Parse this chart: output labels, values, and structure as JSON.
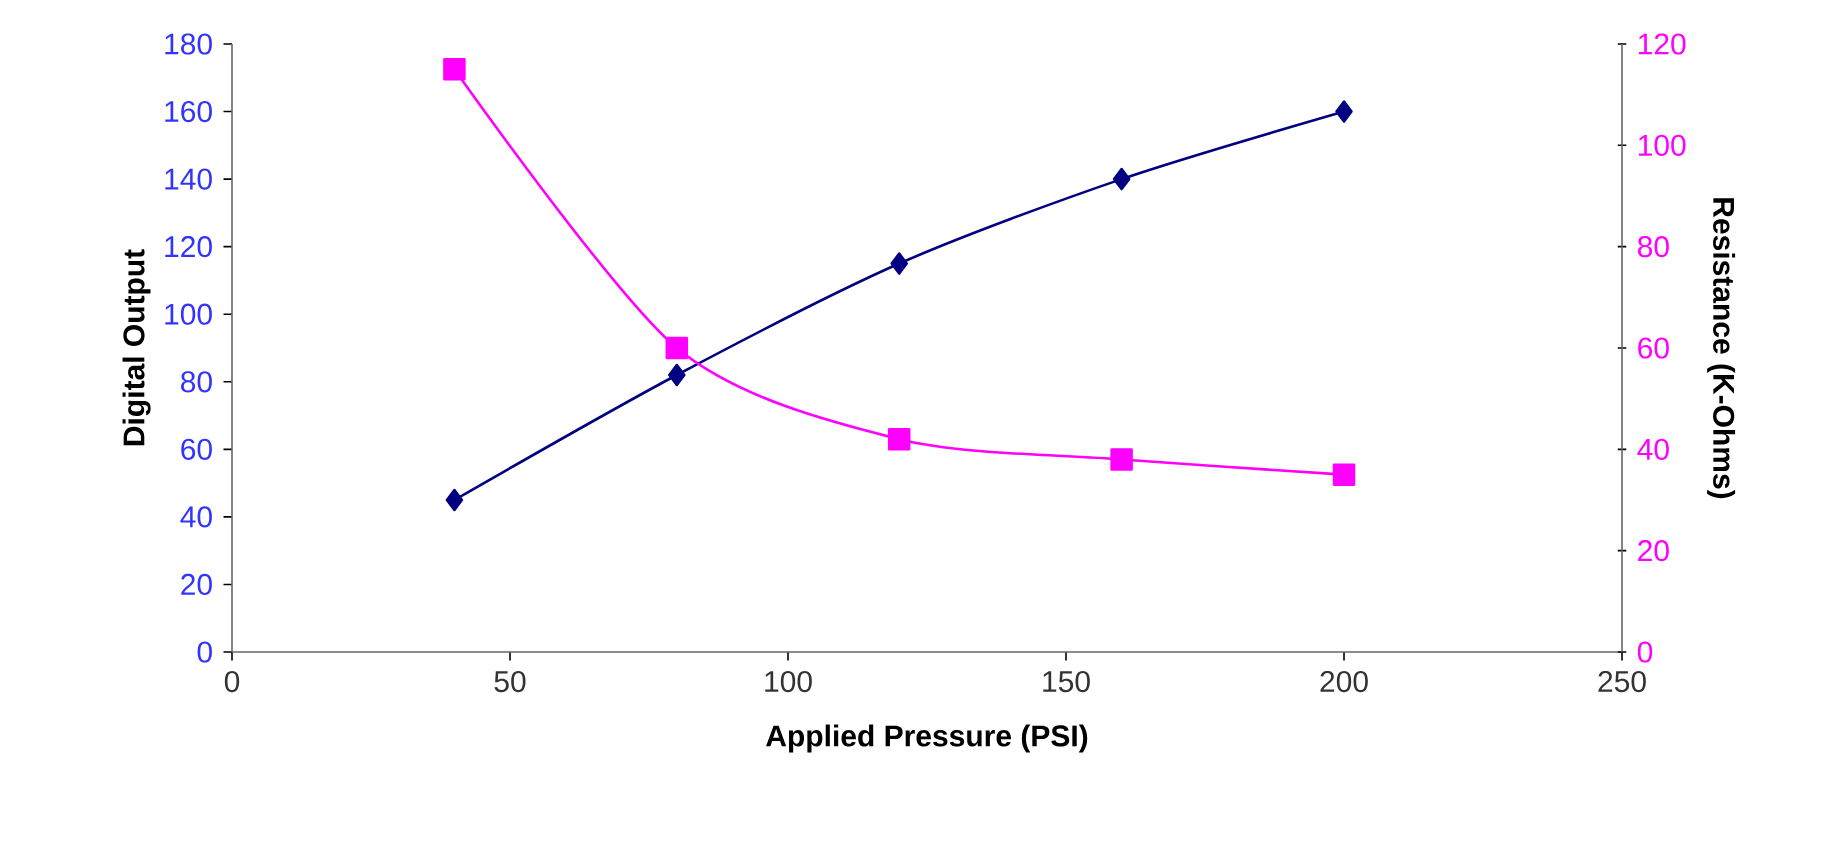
{
  "chart_data": {
    "type": "line",
    "xlabel": "Applied Pressure (PSI)",
    "ylabel": "Digital Output",
    "y2label": "Resistance (K-Ohms)",
    "xlim": [
      0,
      250
    ],
    "xticks": [
      0,
      50,
      100,
      150,
      200,
      250
    ],
    "ylim": [
      0,
      180
    ],
    "yticks": [
      0,
      20,
      40,
      60,
      80,
      100,
      120,
      140,
      160,
      180
    ],
    "y2lim": [
      0,
      120
    ],
    "y2ticks": [
      0,
      20,
      40,
      60,
      80,
      100,
      120
    ],
    "grid": false,
    "line_style": "solid",
    "series": [
      {
        "x": [
          40,
          80,
          120,
          160,
          200
        ],
        "values": [
          45,
          82,
          115,
          140,
          160
        ],
        "color": "#000080",
        "marker": "diamond"
      },
      {
        "x": [
          40,
          80,
          120,
          160,
          200
        ],
        "values": [
          115,
          60,
          42,
          38,
          35
        ],
        "color": "#ff00ff",
        "marker": "square",
        "axis": "y2"
      }
    ]
  }
}
